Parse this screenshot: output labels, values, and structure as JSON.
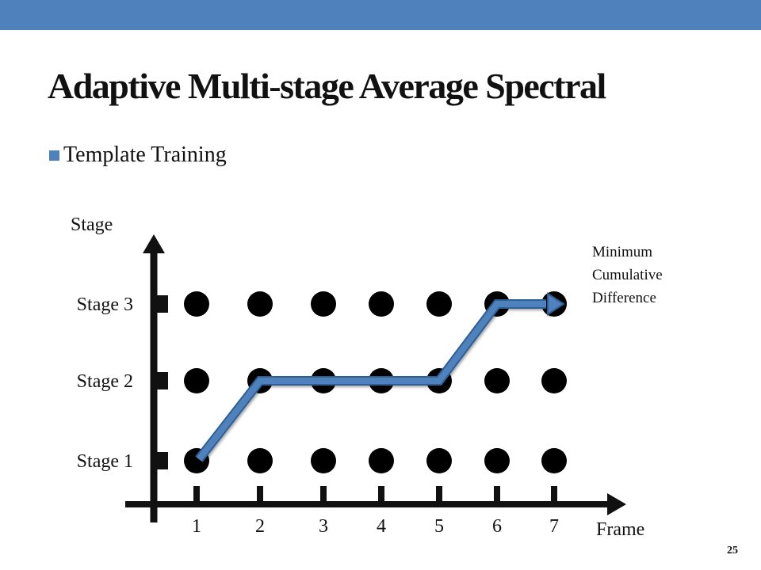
{
  "slide": {
    "title": "Adaptive Multi-stage Average Spectral",
    "bullet": "Template Training",
    "page_number": "25",
    "accent_color": "#4f81bd"
  },
  "diagram": {
    "y_axis_label": "Stage",
    "x_axis_label": "Frame",
    "stages": [
      "Stage 1",
      "Stage 2",
      "Stage 3"
    ],
    "frames": [
      "1",
      "2",
      "3",
      "4",
      "5",
      "6",
      "7"
    ],
    "path": [
      1,
      2,
      2,
      2,
      2,
      3,
      3
    ],
    "path_color": "#4f81bd",
    "note_lines": [
      "Minimum",
      "Cumulative",
      "Difference"
    ]
  }
}
